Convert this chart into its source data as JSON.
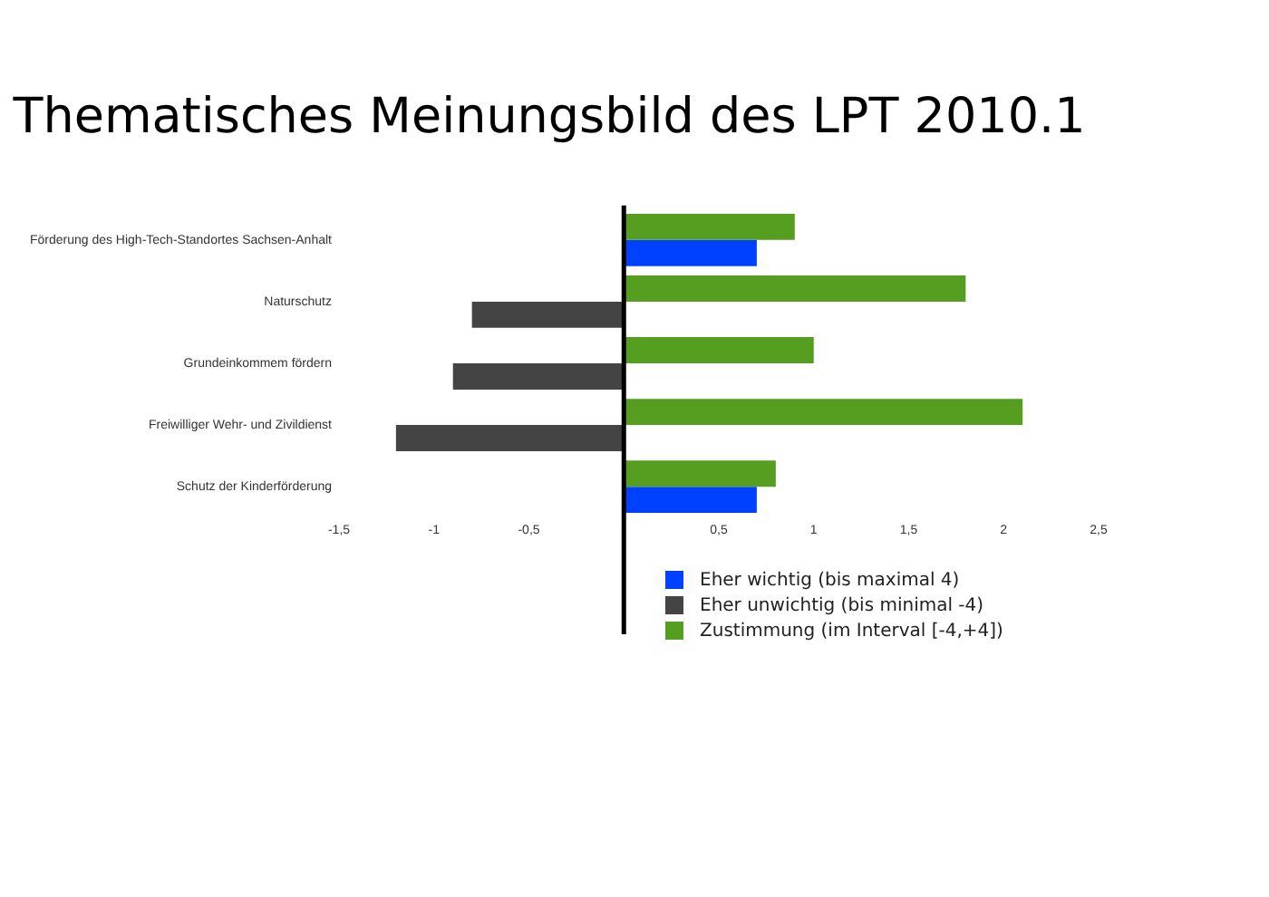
{
  "chart_data": {
    "type": "bar",
    "orientation": "horizontal",
    "title": "Thematisches Meinungsbild des LPT 2010.1",
    "categories": [
      "Förderung des High-Tech-Standortes Sachsen-Anhalt",
      "Naturschutz",
      "Grundeinkommem fördern",
      "Freiwilliger Wehr- und Zivildienst",
      "Schutz der Kinderförderung"
    ],
    "series": [
      {
        "name": "Eher wichtig (bis maximal 4)",
        "color": "#0040ff",
        "values": [
          0.7,
          null,
          null,
          null,
          0.7
        ]
      },
      {
        "name": "Eher unwichtig (bis minimal -4)",
        "color": "#444444",
        "values": [
          null,
          -0.8,
          -0.9,
          -1.2,
          null
        ]
      },
      {
        "name": "Zustimmung (im Interval [-4,+4])",
        "color": "#559e1f",
        "values": [
          0.9,
          1.8,
          1.0,
          2.1,
          0.8
        ]
      }
    ],
    "xlim": [
      -1.5,
      2.5
    ],
    "xticks": [
      {
        "value": -1.5,
        "label": "-1,5"
      },
      {
        "value": -1,
        "label": "-1"
      },
      {
        "value": -0.5,
        "label": "-0,5"
      },
      {
        "value": 0.5,
        "label": "0,5"
      },
      {
        "value": 1,
        "label": "1"
      },
      {
        "value": 1.5,
        "label": "1,5"
      },
      {
        "value": 2,
        "label": "2"
      },
      {
        "value": 2.5,
        "label": "2,5"
      }
    ],
    "legend": "bottom"
  }
}
